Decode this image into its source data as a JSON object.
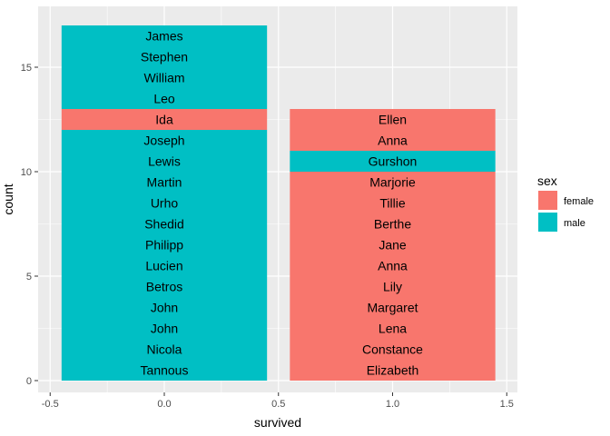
{
  "chart_data": {
    "type": "bar",
    "stacked": true,
    "xlabel": "survived",
    "ylabel": "count",
    "xlim": [
      -0.5,
      1.5
    ],
    "ylim": [
      0,
      17
    ],
    "x_ticks": [
      "-0.5",
      "0.0",
      "0.5",
      "1.0",
      "1.5"
    ],
    "x_tick_values": [
      -0.5,
      0.0,
      0.5,
      1.0,
      1.5
    ],
    "y_ticks": [
      "0",
      "5",
      "10",
      "15"
    ],
    "y_tick_values": [
      0,
      5,
      10,
      15
    ],
    "grid": true,
    "legend": {
      "title": "sex",
      "position": "right",
      "entries": [
        {
          "name": "female",
          "color": "#F8766D"
        },
        {
          "name": "male",
          "color": "#00BFC4"
        }
      ]
    },
    "bars": [
      {
        "x": 0,
        "segments": [
          {
            "name": "Tannous",
            "sex": "male"
          },
          {
            "name": "Nicola",
            "sex": "male"
          },
          {
            "name": "John",
            "sex": "male"
          },
          {
            "name": "John",
            "sex": "male"
          },
          {
            "name": "Betros",
            "sex": "male"
          },
          {
            "name": "Lucien",
            "sex": "male"
          },
          {
            "name": "Philipp",
            "sex": "male"
          },
          {
            "name": "Shedid",
            "sex": "male"
          },
          {
            "name": "Urho",
            "sex": "male"
          },
          {
            "name": "Martin",
            "sex": "male"
          },
          {
            "name": "Lewis",
            "sex": "male"
          },
          {
            "name": "Joseph",
            "sex": "male"
          },
          {
            "name": "Ida",
            "sex": "female"
          },
          {
            "name": "Leo",
            "sex": "male"
          },
          {
            "name": "William",
            "sex": "male"
          },
          {
            "name": "Stephen",
            "sex": "male"
          },
          {
            "name": "James",
            "sex": "male"
          }
        ]
      },
      {
        "x": 1,
        "segments": [
          {
            "name": "Elizabeth",
            "sex": "female"
          },
          {
            "name": "Constance",
            "sex": "female"
          },
          {
            "name": "Lena",
            "sex": "female"
          },
          {
            "name": "Margaret",
            "sex": "female"
          },
          {
            "name": "Lily",
            "sex": "female"
          },
          {
            "name": "Anna",
            "sex": "female"
          },
          {
            "name": "Jane",
            "sex": "female"
          },
          {
            "name": "Berthe",
            "sex": "female"
          },
          {
            "name": "Tillie",
            "sex": "female"
          },
          {
            "name": "Marjorie",
            "sex": "female"
          },
          {
            "name": "Gurshon",
            "sex": "male"
          },
          {
            "name": "Anna",
            "sex": "female"
          },
          {
            "name": "Ellen",
            "sex": "female"
          }
        ]
      }
    ]
  },
  "colors": {
    "panel_bg": "#EBEBEB",
    "grid_major": "#FFFFFF",
    "female": "#F8766D",
    "male": "#00BFC4"
  }
}
